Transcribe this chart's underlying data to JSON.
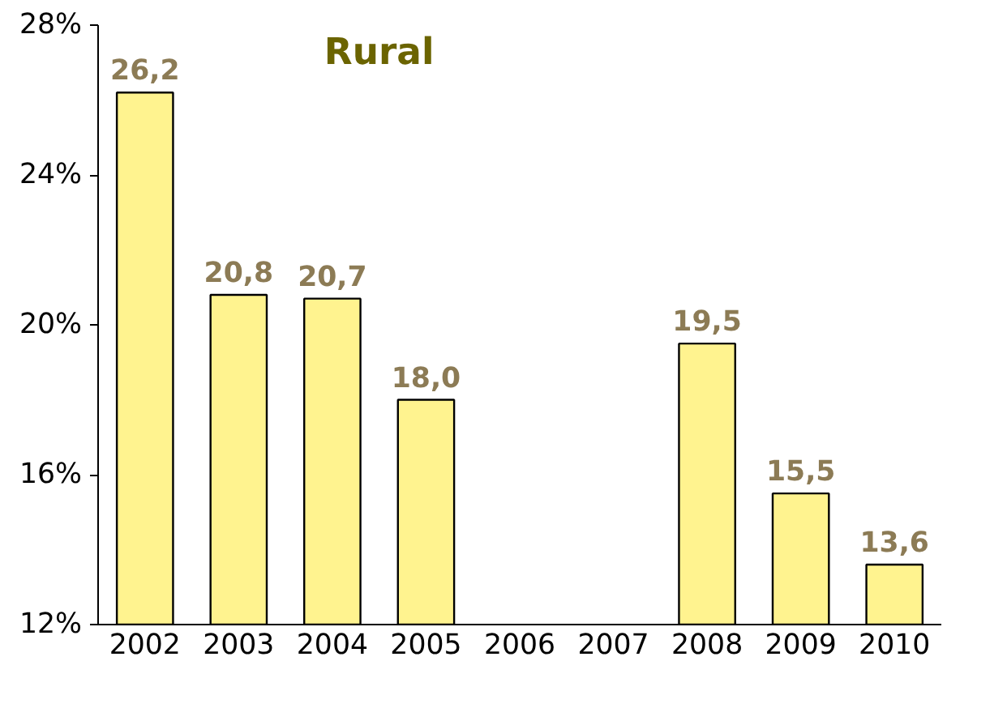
{
  "chart_data": {
    "type": "bar",
    "title": "Rural",
    "categories": [
      "2002",
      "2003",
      "2004",
      "2005",
      "2006",
      "2007",
      "2008",
      "2009",
      "2010"
    ],
    "values": [
      26.2,
      20.8,
      20.7,
      18.0,
      null,
      null,
      19.5,
      15.5,
      13.6
    ],
    "value_labels": [
      "26,2",
      "20,8",
      "20,7",
      "18,0",
      null,
      null,
      "19,5",
      "15,5",
      "13,6"
    ],
    "color": "#fff38f",
    "ylim": [
      12,
      28
    ],
    "yticks": [
      {
        "value": 12,
        "label": "12%"
      },
      {
        "value": 16,
        "label": "16%"
      },
      {
        "value": 20,
        "label": "20%"
      },
      {
        "value": 24,
        "label": "24%"
      },
      {
        "value": 28,
        "label": "28%"
      }
    ],
    "grid": false
  }
}
